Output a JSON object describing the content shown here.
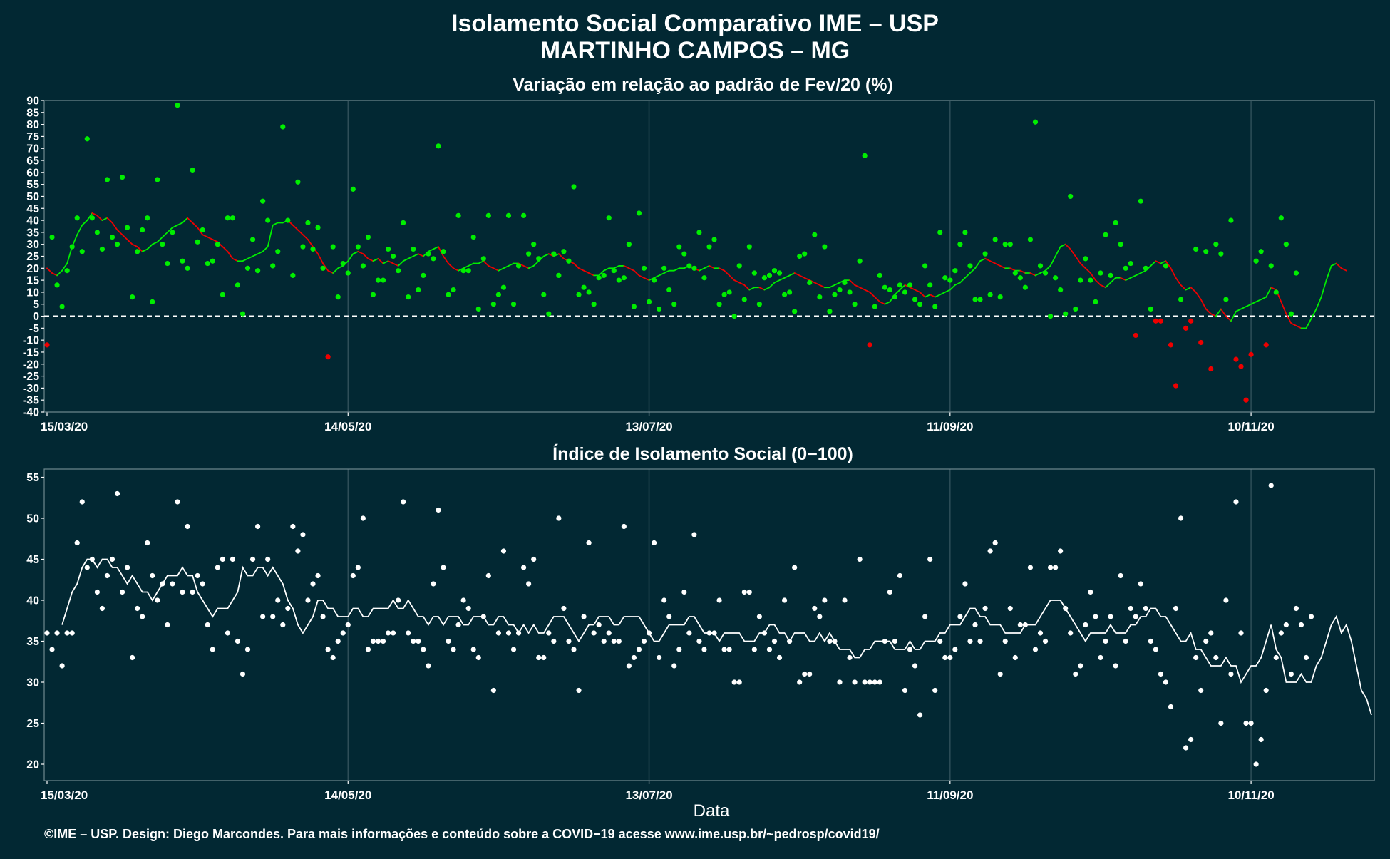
{
  "figure": {
    "title_line1": "Isolamento Social Comparativo IME – USP",
    "title_line2": "MARTINHO CAMPOS – MG",
    "xlabel": "Data",
    "footer": "©IME – USP. Design: Diego Marcondes. Para mais informações e conteúdo sobre a COVID−19 acesse www.ime.usp.br/~pedrosp/covid19/",
    "colors": {
      "background": "#022833",
      "positive": "#00ee00",
      "negative": "#ee0000",
      "index": "#ffffff",
      "grid": "#2e4e58"
    }
  },
  "chart_data": [
    {
      "type": "scatter",
      "title": "Variação em relação ao padrão de Fev/20 (%)",
      "x_start": "15/03/20",
      "x_end": "04/12/20",
      "x_ticks": [
        "15/03/20",
        "14/05/20",
        "13/07/20",
        "11/09/20",
        "10/11/20"
      ],
      "ylim": [
        -40,
        90
      ],
      "y_ticks": [
        -40,
        -35,
        -30,
        -25,
        -20,
        -15,
        -10,
        -5,
        0,
        5,
        10,
        15,
        20,
        25,
        30,
        35,
        40,
        45,
        50,
        55,
        60,
        65,
        70,
        75,
        80,
        85,
        90
      ],
      "reference_line": 0,
      "series": [
        {
          "kind": "daily_points",
          "values": [
            -12,
            33,
            13,
            4,
            19,
            29,
            41,
            27,
            74,
            41,
            35,
            28,
            57,
            33,
            30,
            58,
            37,
            8,
            27,
            36,
            41,
            6,
            57,
            30,
            22,
            35,
            88,
            23,
            20,
            61,
            31,
            36,
            22,
            23,
            30,
            9,
            41,
            41,
            13,
            1,
            20,
            32,
            19,
            48,
            40,
            21,
            27,
            79,
            40,
            17,
            56,
            29,
            39,
            28,
            37,
            20,
            -17,
            29,
            8,
            22,
            18,
            53,
            29,
            21,
            33,
            9,
            15,
            15,
            28,
            25,
            19,
            39,
            8,
            28,
            11,
            17,
            26,
            24,
            71,
            27,
            9,
            11,
            42,
            19,
            19,
            33,
            3,
            24,
            42,
            5,
            9,
            12,
            42,
            5,
            21,
            42,
            26,
            30,
            24,
            9,
            1,
            26,
            17,
            27,
            23,
            54,
            9,
            12,
            10,
            5,
            16,
            17,
            41,
            19,
            15,
            16,
            30,
            4,
            43,
            20,
            6,
            15,
            3,
            20,
            11,
            5,
            29,
            26,
            21,
            20,
            35,
            16,
            29,
            32,
            5,
            9,
            10,
            0,
            21,
            7,
            29,
            18,
            5,
            16,
            17,
            19,
            18,
            9,
            10,
            2,
            25,
            26,
            14,
            34,
            8,
            29,
            2,
            9,
            11,
            14,
            10,
            5,
            23,
            67,
            -12,
            4,
            17,
            12,
            11,
            8,
            13,
            10,
            13,
            7,
            5,
            21,
            13,
            4,
            35,
            16,
            15,
            19,
            30,
            35,
            21,
            7,
            7,
            26,
            9,
            32,
            8,
            30,
            30,
            18,
            16,
            12,
            32,
            81,
            21,
            18,
            0,
            16,
            11,
            1,
            50,
            3,
            15,
            24,
            15,
            6,
            18,
            34,
            17,
            39,
            30,
            20,
            22,
            -8,
            48,
            20,
            3,
            -2,
            -2,
            21,
            -12,
            -29,
            7,
            -5,
            -2,
            28,
            -11,
            27,
            -22,
            30,
            26,
            7,
            40,
            -18,
            -21,
            -35,
            -16,
            23,
            27,
            -12,
            21,
            10,
            41,
            30,
            1,
            18
          ],
          "negative_color": "#ee0000",
          "positive_color": "#00ee00"
        },
        {
          "kind": "moving_average",
          "values": [
            20,
            18,
            17,
            19,
            22,
            29,
            34,
            38,
            40,
            43,
            42,
            40,
            41,
            39,
            36,
            34,
            32,
            30,
            29,
            27,
            28,
            30,
            31,
            33,
            35,
            37,
            38,
            39,
            41,
            39,
            37,
            34,
            33,
            32,
            31,
            29,
            27,
            24,
            23,
            23,
            24,
            25,
            26,
            27,
            29,
            38,
            39,
            39,
            40,
            38,
            36,
            34,
            32,
            29,
            26,
            22,
            19,
            18,
            20,
            21,
            23,
            26,
            27,
            26,
            24,
            23,
            24,
            22,
            23,
            22,
            21,
            23,
            24,
            25,
            26,
            25,
            27,
            28,
            29,
            25,
            22,
            20,
            19,
            20,
            21,
            22,
            22,
            23,
            21,
            20,
            19,
            20,
            21,
            22,
            22,
            21,
            20,
            21,
            23,
            25,
            26,
            25,
            26,
            24,
            23,
            22,
            20,
            19,
            18,
            17,
            17,
            19,
            20,
            20,
            21,
            21,
            20,
            19,
            17,
            16,
            15,
            16,
            17,
            18,
            19,
            19,
            20,
            20,
            21,
            20,
            19,
            20,
            21,
            20,
            20,
            19,
            17,
            15,
            14,
            13,
            11,
            12,
            12,
            11,
            12,
            14,
            15,
            16,
            17,
            18,
            17,
            16,
            15,
            14,
            13,
            12,
            12,
            13,
            14,
            15,
            15,
            13,
            12,
            11,
            10,
            8,
            6,
            5,
            6,
            9,
            11,
            13,
            12,
            11,
            10,
            8,
            9,
            8,
            9,
            10,
            11,
            13,
            14,
            16,
            18,
            20,
            23,
            24,
            23,
            22,
            21,
            20,
            20,
            19,
            19,
            18,
            18,
            17,
            18,
            19,
            21,
            25,
            29,
            30,
            28,
            25,
            22,
            20,
            18,
            15,
            13,
            12,
            14,
            16,
            16,
            15,
            16,
            17,
            18,
            19,
            21,
            23,
            22,
            23,
            20,
            16,
            13,
            11,
            12,
            10,
            7,
            3,
            1,
            0,
            3,
            0,
            -2,
            2,
            3,
            4,
            5,
            6,
            7,
            8,
            12,
            11,
            6,
            1,
            -3,
            -4,
            -5,
            -5,
            -1,
            3,
            8,
            15,
            21,
            22,
            20,
            19
          ],
          "positive_color": "#00ee00",
          "negative_color": "#ee0000"
        }
      ]
    },
    {
      "type": "scatter",
      "title": "Índice de Isolamento Social (0−100)",
      "x_start": "15/03/20",
      "x_end": "04/12/20",
      "x_ticks": [
        "15/03/20",
        "14/05/20",
        "13/07/20",
        "11/09/20",
        "10/11/20"
      ],
      "ylim": [
        18,
        56
      ],
      "y_ticks": [
        20,
        25,
        30,
        35,
        40,
        45,
        50,
        55
      ],
      "series": [
        {
          "kind": "daily_points",
          "color": "#ffffff",
          "values": [
            36,
            34,
            36,
            32,
            36,
            36,
            47,
            52,
            44,
            45,
            41,
            39,
            43,
            45,
            53,
            41,
            44,
            33,
            39,
            38,
            47,
            43,
            40,
            42,
            37,
            42,
            52,
            41,
            49,
            41,
            43,
            42,
            37,
            34,
            44,
            45,
            36,
            45,
            35,
            31,
            34,
            45,
            49,
            38,
            45,
            38,
            40,
            37,
            39,
            49,
            46,
            48,
            40,
            42,
            43,
            38,
            34,
            33,
            35,
            36,
            37,
            43,
            44,
            50,
            34,
            35,
            35,
            35,
            36,
            36,
            40,
            52,
            36,
            35,
            35,
            34,
            32,
            42,
            51,
            44,
            35,
            34,
            37,
            40,
            39,
            34,
            33,
            38,
            43,
            29,
            36,
            46,
            36,
            34,
            36,
            44,
            42,
            45,
            33,
            33,
            36,
            35,
            50,
            39,
            35,
            34,
            29,
            38,
            47,
            36,
            37,
            35,
            36,
            35,
            35,
            49,
            32,
            33,
            34,
            35,
            36,
            47,
            33,
            40,
            38,
            32,
            34,
            41,
            36,
            48,
            35,
            34,
            36,
            36,
            40,
            34,
            34,
            30,
            30,
            41,
            41,
            34,
            38,
            36,
            34,
            35,
            33,
            40,
            35,
            44,
            30,
            31,
            31,
            39,
            38,
            40,
            35,
            35,
            30,
            40,
            33,
            30,
            45,
            30,
            30,
            30,
            30,
            35,
            41,
            35,
            43,
            29,
            34,
            32,
            26,
            38,
            45,
            29,
            35,
            33,
            33,
            34,
            38,
            42,
            35,
            37,
            35,
            39,
            46,
            47,
            31,
            35,
            39,
            33,
            37,
            37,
            44,
            34,
            36,
            35,
            44,
            44,
            46,
            39,
            36,
            31,
            32,
            37,
            41,
            38,
            33,
            35,
            38,
            32,
            43,
            35,
            39,
            38,
            42,
            39,
            35,
            34,
            31,
            30,
            27,
            39,
            50,
            22,
            23,
            33,
            29,
            35,
            36,
            33,
            25,
            40,
            31,
            52,
            36,
            25,
            25,
            20,
            23,
            29,
            54,
            33,
            36,
            37,
            31,
            39,
            37,
            33,
            38
          ]
        },
        {
          "kind": "moving_average",
          "color": "#ffffff",
          "values": [
            37,
            39,
            41,
            42,
            44,
            45,
            45,
            44,
            45,
            45,
            44,
            44,
            43,
            42,
            43,
            42,
            41,
            41,
            40,
            41,
            42,
            43,
            43,
            43,
            44,
            43,
            43,
            41,
            40,
            39,
            38,
            39,
            39,
            39,
            40,
            41,
            44,
            43,
            43,
            44,
            44,
            43,
            44,
            43,
            42,
            40,
            39,
            37,
            36,
            37,
            38,
            40,
            40,
            39,
            39,
            38,
            38,
            38,
            39,
            39,
            38,
            38,
            39,
            39,
            39,
            39,
            40,
            39,
            39,
            40,
            39,
            38,
            38,
            37,
            38,
            38,
            37,
            38,
            38,
            38,
            37,
            37,
            38,
            38,
            38,
            37,
            37,
            38,
            38,
            37,
            37,
            36,
            37,
            36,
            37,
            36,
            36,
            37,
            38,
            38,
            38,
            37,
            36,
            35,
            36,
            37,
            37,
            38,
            38,
            38,
            37,
            37,
            38,
            38,
            38,
            38,
            37,
            36,
            35,
            35,
            36,
            37,
            37,
            37,
            37,
            38,
            38,
            37,
            36,
            36,
            36,
            35,
            36,
            36,
            36,
            36,
            35,
            35,
            35,
            36,
            36,
            37,
            37,
            36,
            36,
            35,
            36,
            36,
            36,
            35,
            35,
            36,
            35,
            36,
            35,
            34,
            34,
            34,
            33,
            33,
            34,
            34,
            35,
            35,
            35,
            35,
            34,
            34,
            34,
            35,
            34,
            34,
            35,
            35,
            35,
            36,
            36,
            37,
            37,
            37,
            38,
            39,
            39,
            38,
            38,
            37,
            37,
            37,
            36,
            36,
            36,
            36,
            37,
            37,
            37,
            38,
            39,
            40,
            40,
            40,
            39,
            38,
            37,
            36,
            35,
            36,
            36,
            36,
            36,
            37,
            36,
            36,
            36,
            37,
            37,
            38,
            38,
            39,
            39,
            38,
            38,
            37,
            36,
            35,
            35,
            36,
            34,
            34,
            33,
            32,
            32,
            32,
            33,
            32,
            32,
            30,
            31,
            32,
            32,
            33,
            35,
            37,
            34,
            33,
            30,
            30,
            30,
            31,
            30,
            30,
            32,
            33,
            35,
            37,
            38,
            36,
            37,
            35,
            32,
            29,
            28,
            26
          ]
        }
      ]
    }
  ]
}
